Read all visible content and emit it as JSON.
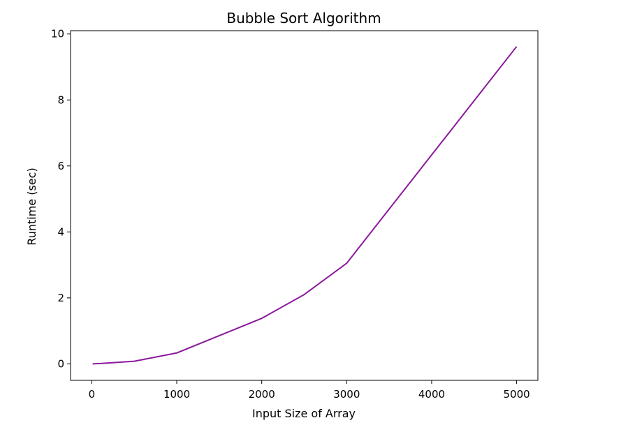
{
  "chart_data": {
    "type": "line",
    "title": "Bubble Sort Algorithm",
    "xlabel": "Input Size of Array",
    "ylabel": "Runtime (sec)",
    "xlim": [
      -250,
      5250
    ],
    "ylim": [
      -0.5,
      10.1
    ],
    "xticks": [
      0,
      1000,
      2000,
      3000,
      4000,
      5000
    ],
    "yticks": [
      0,
      2,
      4,
      6,
      8,
      10
    ],
    "grid": false,
    "legend": "none",
    "series": [
      {
        "color": "#8b1a9b",
        "x": [
          10,
          100,
          500,
          1000,
          2000,
          2500,
          3000,
          5000
        ],
        "y": [
          0.0,
          0.01,
          0.08,
          0.33,
          1.38,
          2.1,
          3.05,
          9.62
        ]
      }
    ]
  }
}
